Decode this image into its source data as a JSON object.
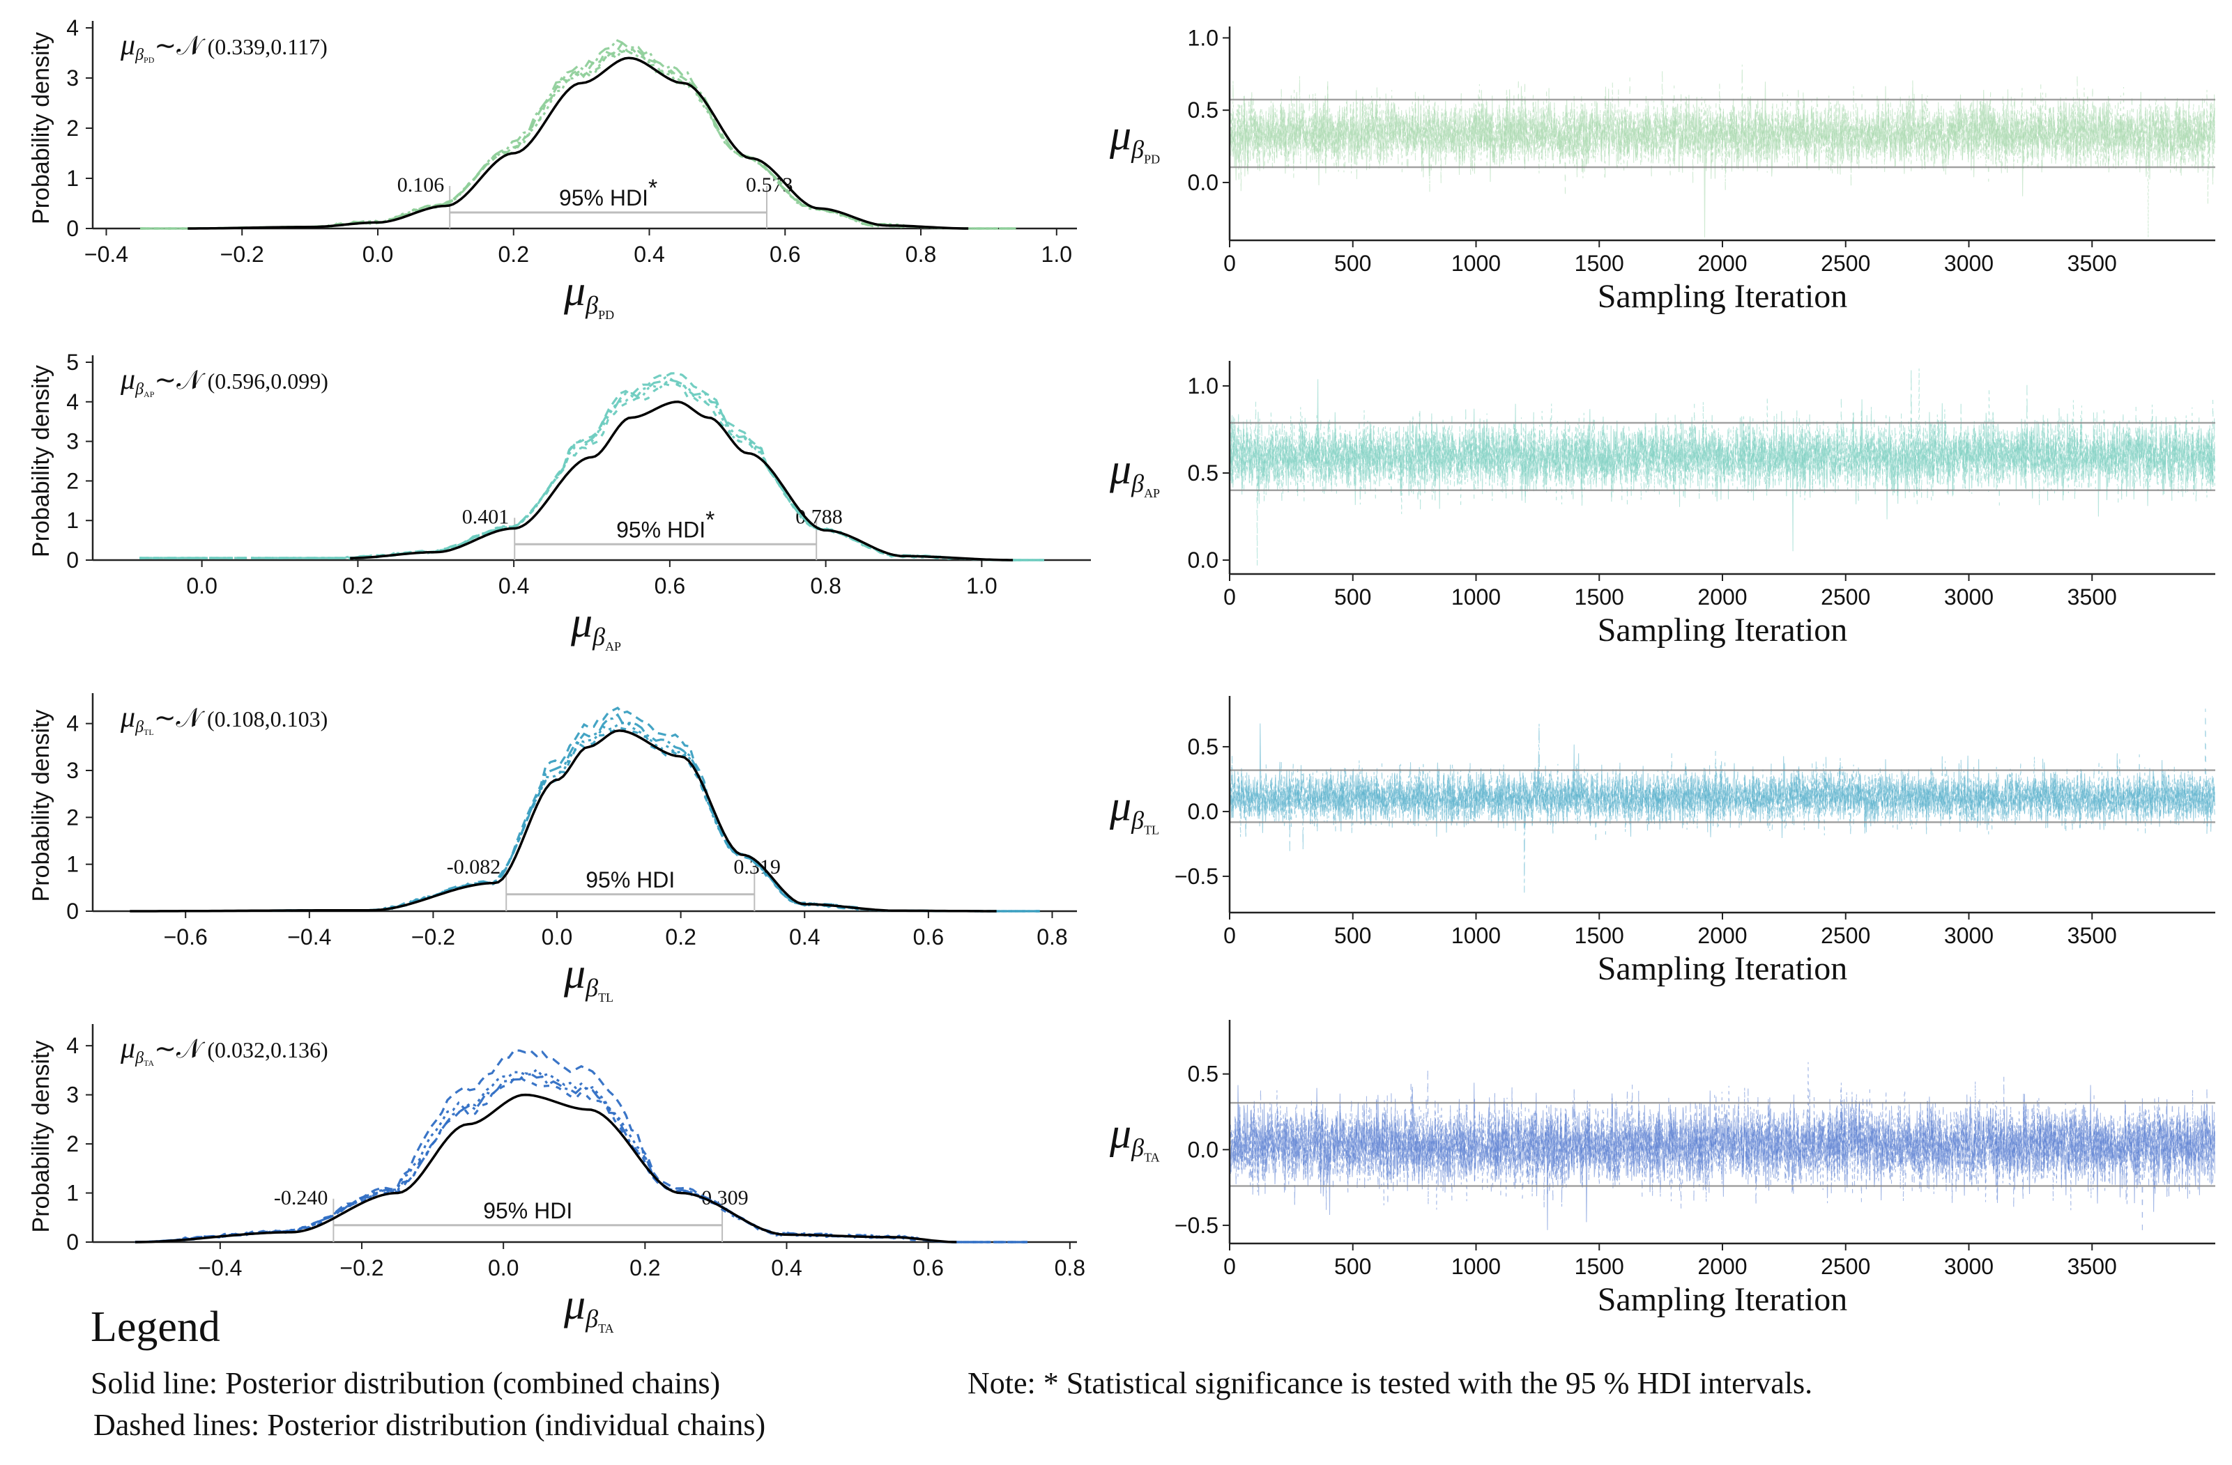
{
  "figure": {
    "density_ylabel": "Probability density",
    "trace_xlabel": "Sampling Iteration",
    "hdi_label": "95% HDI"
  },
  "legend": {
    "title": "Legend",
    "solid": "Solid line: Posterior distribution (combined chains)",
    "dashed": "Dashed lines: Posterior distribution (individual chains)",
    "note": "Note: * Statistical significance is tested with the 95 % HDI intervals."
  },
  "chart_data": [
    {
      "id": "pd",
      "type": "line",
      "kind": "density",
      "subscript": "PD",
      "dist_mean": "0.339",
      "dist_sd": "0.117",
      "mean": 0.339,
      "sd": 0.117,
      "peak": 3.4,
      "hdi_low": 0.106,
      "hdi_high": 0.573,
      "hdi_low_label": "0.106",
      "hdi_high_label": "0.573",
      "significant": true,
      "color": "#8fcf9a",
      "xlim": [
        -0.42,
        1.03
      ],
      "ylim": [
        0,
        4
      ],
      "xticks": [
        -0.4,
        -0.2,
        0.0,
        0.2,
        0.4,
        0.6,
        0.8,
        1.0
      ],
      "xtick_labels": [
        "−0.4",
        "−0.2",
        "0.0",
        "0.2",
        "0.4",
        "0.6",
        "0.8",
        "1.0"
      ],
      "yticks": [
        0,
        1,
        2,
        3,
        4
      ],
      "ytick_labels": [
        "0",
        "1",
        "2",
        "3",
        "4"
      ],
      "combined_range": [
        -0.28,
        0.87
      ],
      "chain_range": [
        -0.35,
        0.94
      ],
      "x": [
        -0.28,
        -0.1,
        0.0,
        0.1,
        0.2,
        0.3,
        0.37,
        0.45,
        0.55,
        0.65,
        0.75,
        0.87
      ],
      "y": [
        0.0,
        0.03,
        0.12,
        0.45,
        1.5,
        2.9,
        3.4,
        2.9,
        1.4,
        0.4,
        0.06,
        0.0
      ],
      "chain_peaks": [
        3.6,
        3.5,
        3.7,
        3.55
      ]
    },
    {
      "id": "ap",
      "type": "line",
      "kind": "density",
      "subscript": "AP",
      "dist_mean": "0.596",
      "dist_sd": "0.099",
      "mean": 0.596,
      "sd": 0.099,
      "peak": 4.0,
      "hdi_low": 0.401,
      "hdi_high": 0.788,
      "hdi_low_label": "0.401",
      "hdi_high_label": "0.788",
      "significant": true,
      "color": "#6ccbbf",
      "xlim": [
        -0.14,
        1.14
      ],
      "ylim": [
        0,
        5
      ],
      "xticks": [
        0.0,
        0.2,
        0.4,
        0.6,
        0.8,
        1.0
      ],
      "xtick_labels": [
        "0.0",
        "0.2",
        "0.4",
        "0.6",
        "0.8",
        "1.0"
      ],
      "yticks": [
        0,
        1,
        2,
        3,
        4,
        5
      ],
      "ytick_labels": [
        "0",
        "1",
        "2",
        "3",
        "4",
        "5"
      ],
      "combined_range": [
        0.19,
        1.04
      ],
      "chain_range": [
        -0.08,
        1.08
      ],
      "x": [
        0.19,
        0.3,
        0.4,
        0.5,
        0.55,
        0.61,
        0.65,
        0.7,
        0.8,
        0.9,
        1.04
      ],
      "y": [
        0.05,
        0.2,
        0.8,
        2.6,
        3.6,
        4.0,
        3.6,
        2.7,
        0.75,
        0.1,
        0.0
      ],
      "chain_peaks": [
        4.7,
        4.5,
        4.6,
        4.4
      ]
    },
    {
      "id": "tl",
      "type": "line",
      "kind": "density",
      "subscript": "TL",
      "dist_mean": "0.108",
      "dist_sd": "0.103",
      "mean": 0.108,
      "sd": 0.103,
      "peak": 3.85,
      "hdi_low": -0.082,
      "hdi_high": 0.319,
      "hdi_low_label": "-0.082",
      "hdi_high_label": "0.319",
      "significant": false,
      "color": "#3a9fc1",
      "xlim": [
        -0.75,
        0.84
      ],
      "ylim": [
        0,
        4.5
      ],
      "xticks": [
        -0.6,
        -0.4,
        -0.2,
        0.0,
        0.2,
        0.4,
        0.6,
        0.8
      ],
      "xtick_labels": [
        "−0.6",
        "−0.4",
        "−0.2",
        "0.0",
        "0.2",
        "0.4",
        "0.6",
        "0.8"
      ],
      "yticks": [
        0,
        1,
        2,
        3,
        4
      ],
      "ytick_labels": [
        "0",
        "1",
        "2",
        "3",
        "4"
      ],
      "combined_range": [
        -0.69,
        0.71
      ],
      "chain_range": [
        -0.46,
        0.78
      ],
      "x": [
        -0.69,
        -0.3,
        -0.1,
        0.0,
        0.05,
        0.1,
        0.2,
        0.3,
        0.4,
        0.55,
        0.71
      ],
      "y": [
        0.0,
        0.02,
        0.6,
        2.8,
        3.5,
        3.85,
        3.3,
        1.2,
        0.15,
        0.01,
        0.0
      ],
      "chain_peaks": [
        4.3,
        4.0,
        4.1,
        3.9
      ]
    },
    {
      "id": "ta",
      "type": "line",
      "kind": "density",
      "subscript": "TA",
      "dist_mean": "0.032",
      "dist_sd": "0.136",
      "mean": 0.032,
      "sd": 0.136,
      "peak": 3.0,
      "hdi_low": -0.24,
      "hdi_high": 0.309,
      "hdi_low_label": "-0.240",
      "hdi_high_label": "0.309",
      "significant": false,
      "color": "#2f6ec4",
      "xlim": [
        -0.58,
        0.81
      ],
      "ylim": [
        0,
        4.3
      ],
      "xticks": [
        -0.4,
        -0.2,
        0.0,
        0.2,
        0.4,
        0.6,
        0.8
      ],
      "xtick_labels": [
        "−0.4",
        "−0.2",
        "0.0",
        "0.2",
        "0.4",
        "0.6",
        "0.8"
      ],
      "yticks": [
        0,
        1,
        2,
        3,
        4
      ],
      "ytick_labels": [
        "0",
        "1",
        "2",
        "3",
        "4"
      ],
      "combined_range": [
        -0.52,
        0.64
      ],
      "chain_range": [
        -0.52,
        0.74
      ],
      "x": [
        -0.52,
        -0.3,
        -0.15,
        -0.05,
        0.03,
        0.12,
        0.25,
        0.4,
        0.55,
        0.64
      ],
      "y": [
        0.0,
        0.2,
        1.0,
        2.4,
        3.0,
        2.7,
        1.0,
        0.15,
        0.1,
        0.0
      ],
      "chain_peaks": [
        3.9,
        3.5,
        3.4,
        3.3
      ]
    },
    {
      "id": "pd_trace",
      "type": "line",
      "kind": "trace",
      "subscript": "PD",
      "color": "#a9d9ae",
      "n": 4000,
      "mean": 0.339,
      "sd": 0.117,
      "hdi": [
        0.106,
        0.573
      ],
      "xlim": [
        0,
        4000
      ],
      "ylim": [
        -0.4,
        1.05
      ],
      "xticks": [
        0,
        500,
        1000,
        1500,
        2000,
        2500,
        3000,
        3500
      ],
      "xtick_labels": [
        "0",
        "500",
        "1000",
        "1500",
        "2000",
        "2500",
        "3000",
        "3500"
      ],
      "yticks": [
        0.0,
        0.5,
        1.0
      ],
      "ytick_labels": [
        "0.0",
        "0.5",
        "1.0"
      ]
    },
    {
      "id": "ap_trace",
      "type": "line",
      "kind": "trace",
      "subscript": "AP",
      "color": "#7dcfc1",
      "n": 4000,
      "mean": 0.596,
      "sd": 0.099,
      "hdi": [
        0.401,
        0.788
      ],
      "xlim": [
        0,
        4000
      ],
      "ylim": [
        -0.08,
        1.12
      ],
      "xticks": [
        0,
        500,
        1000,
        1500,
        2000,
        2500,
        3000,
        3500
      ],
      "xtick_labels": [
        "0",
        "500",
        "1000",
        "1500",
        "2000",
        "2500",
        "3000",
        "3500"
      ],
      "yticks": [
        0.0,
        0.5,
        1.0
      ],
      "ytick_labels": [
        "0.0",
        "0.5",
        "1.0"
      ]
    },
    {
      "id": "tl_trace",
      "type": "line",
      "kind": "trace",
      "subscript": "TL",
      "color": "#5ab0cc",
      "n": 4000,
      "mean": 0.108,
      "sd": 0.103,
      "hdi": [
        -0.082,
        0.319
      ],
      "xlim": [
        0,
        4000
      ],
      "ylim": [
        -0.78,
        0.86
      ],
      "xticks": [
        0,
        500,
        1000,
        1500,
        2000,
        2500,
        3000,
        3500
      ],
      "xtick_labels": [
        "0",
        "500",
        "1000",
        "1500",
        "2000",
        "2500",
        "3000",
        "3500"
      ],
      "yticks": [
        -0.5,
        0.0,
        0.5
      ],
      "ytick_labels": [
        "−0.5",
        "0.0",
        "0.5"
      ]
    },
    {
      "id": "ta_trace",
      "type": "line",
      "kind": "trace",
      "subscript": "TA",
      "color": "#5b7fd1",
      "n": 4000,
      "mean": 0.032,
      "sd": 0.136,
      "hdi": [
        -0.24,
        0.309
      ],
      "xlim": [
        0,
        4000
      ],
      "ylim": [
        -0.62,
        0.83
      ],
      "xticks": [
        0,
        500,
        1000,
        1500,
        2000,
        2500,
        3000,
        3500
      ],
      "xtick_labels": [
        "0",
        "500",
        "1000",
        "1500",
        "2000",
        "2500",
        "3000",
        "3500"
      ],
      "yticks": [
        -0.5,
        0.0,
        0.5
      ],
      "ytick_labels": [
        "−0.5",
        "0.0",
        "0.5"
      ]
    }
  ]
}
